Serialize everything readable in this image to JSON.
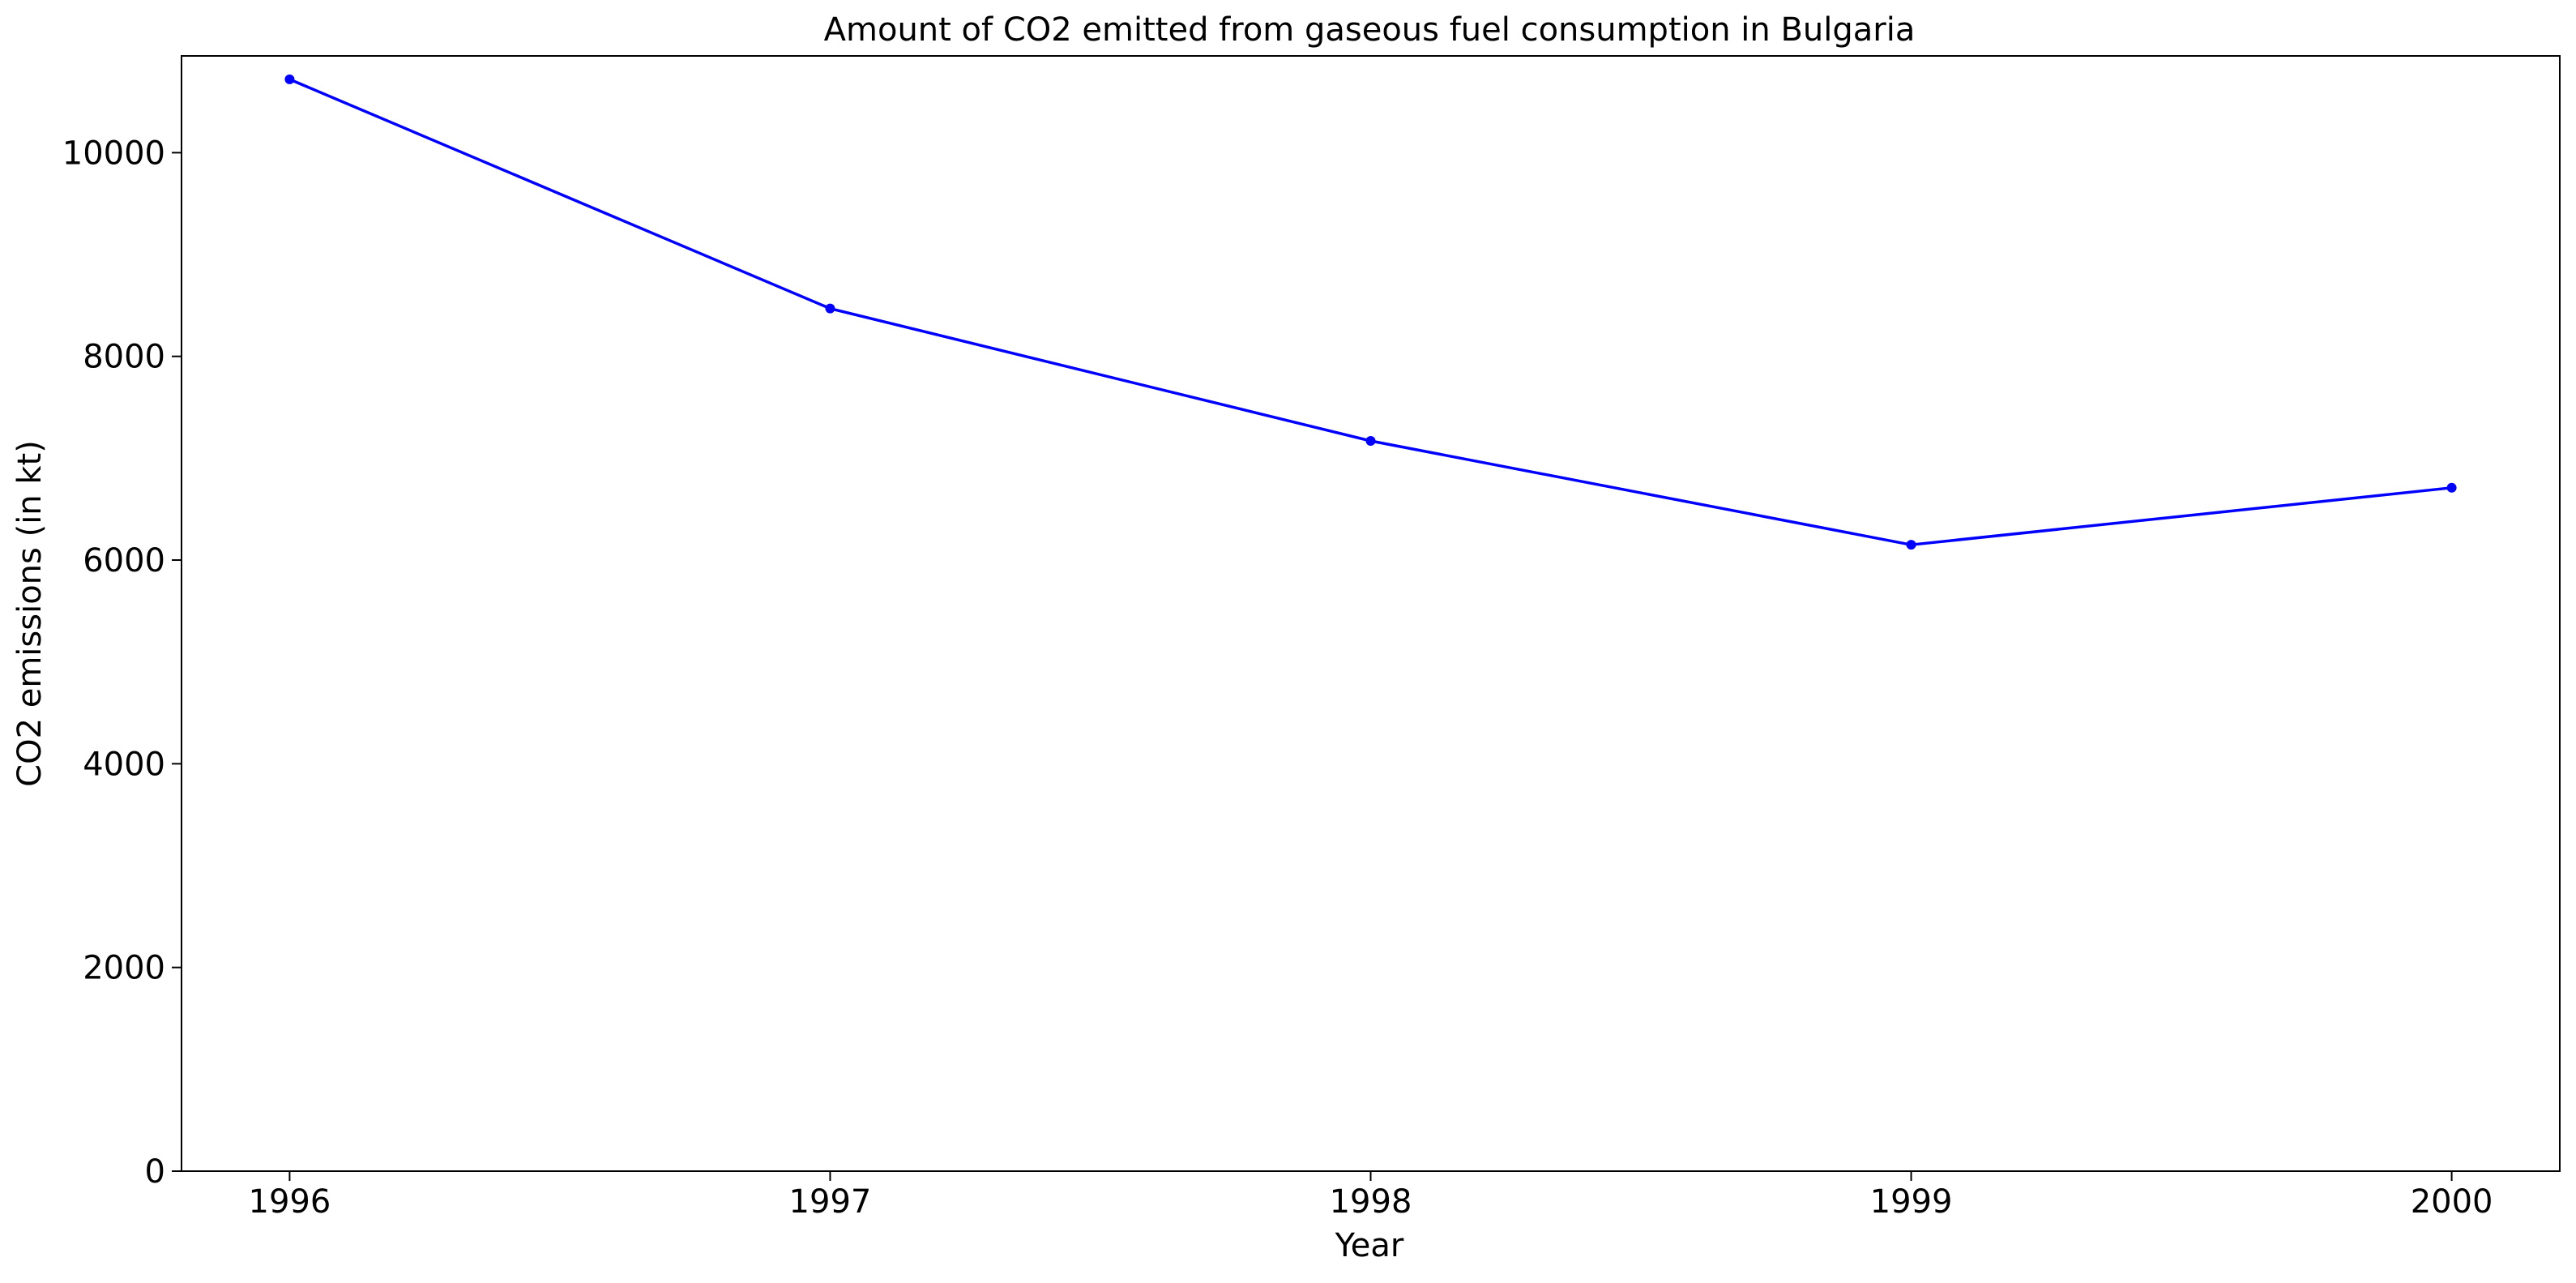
{
  "chart_data": {
    "type": "line",
    "title": "Amount of CO2 emitted from gaseous fuel consumption in Bulgaria",
    "xlabel": "Year",
    "ylabel": "CO2 emissions (in kt)",
    "x": [
      1996,
      1997,
      1998,
      1999,
      2000
    ],
    "x_ticks": [
      "1996",
      "1997",
      "1998",
      "1999",
      "2000"
    ],
    "y_ticks": [
      0,
      2000,
      4000,
      6000,
      8000,
      10000
    ],
    "y_tick_labels": [
      "0",
      "2000",
      "4000",
      "6000",
      "8000",
      "10000"
    ],
    "xlim": [
      1995.8,
      2000.2
    ],
    "ylim": [
      0,
      10950
    ],
    "grid": false,
    "series": [
      {
        "color": "#0000ff",
        "marker": "circle",
        "values": [
          10720,
          8470,
          7170,
          6150,
          6710
        ]
      }
    ]
  }
}
